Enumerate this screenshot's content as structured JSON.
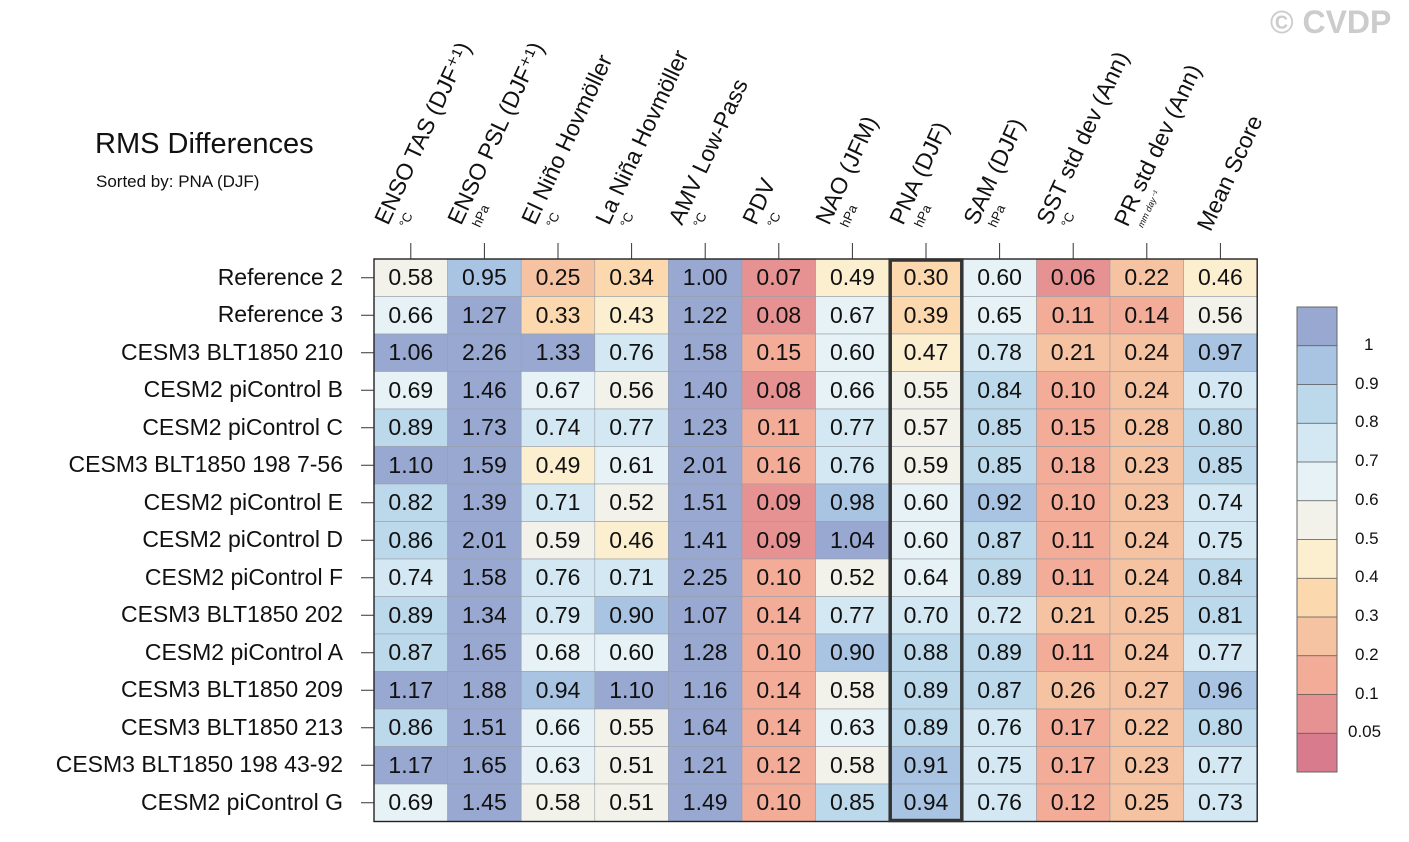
{
  "title": "RMS Differences",
  "subtitle": "Sorted by: PNA (DJF)",
  "copyright": "© CVDP",
  "chart_data": {
    "type": "heatmap",
    "highlighted_column": "PNA (DJF)",
    "columns": [
      {
        "name": "ENSO TAS (DJF⁺¹)",
        "unit": "°C"
      },
      {
        "name": "ENSO PSL (DJF⁺¹)",
        "unit": "hPa"
      },
      {
        "name": "El Niño Hovmöller",
        "unit": "°C"
      },
      {
        "name": "La Niña Hovmöller",
        "unit": "°C"
      },
      {
        "name": "AMV Low-Pass",
        "unit": "°C"
      },
      {
        "name": "PDV",
        "unit": "°C"
      },
      {
        "name": "NAO (JFM)",
        "unit": "hPa"
      },
      {
        "name": "PNA (DJF)",
        "unit": "hPa"
      },
      {
        "name": "SAM (DJF)",
        "unit": "hPa"
      },
      {
        "name": "SST std dev (Ann)",
        "unit": "°C"
      },
      {
        "name": "PR std dev (Ann)",
        "unit": "mm day⁻¹"
      },
      {
        "name": "Mean Score",
        "unit": ""
      }
    ],
    "rows": [
      {
        "label": "Reference 2",
        "values": [
          "0.58",
          "0.95",
          "0.25",
          "0.34",
          "1.00",
          "0.07",
          "0.49",
          "0.30",
          "0.60",
          "0.06",
          "0.22",
          "0.46"
        ]
      },
      {
        "label": "Reference 3",
        "values": [
          "0.66",
          "1.27",
          "0.33",
          "0.43",
          "1.22",
          "0.08",
          "0.67",
          "0.39",
          "0.65",
          "0.11",
          "0.14",
          "0.56"
        ]
      },
      {
        "label": "CESM3 BLT1850 210",
        "values": [
          "1.06",
          "2.26",
          "1.33",
          "0.76",
          "1.58",
          "0.15",
          "0.60",
          "0.47",
          "0.78",
          "0.21",
          "0.24",
          "0.97"
        ]
      },
      {
        "label": "CESM2 piControl B",
        "values": [
          "0.69",
          "1.46",
          "0.67",
          "0.56",
          "1.40",
          "0.08",
          "0.66",
          "0.55",
          "0.84",
          "0.10",
          "0.24",
          "0.70"
        ]
      },
      {
        "label": "CESM2 piControl C",
        "values": [
          "0.89",
          "1.73",
          "0.74",
          "0.77",
          "1.23",
          "0.11",
          "0.77",
          "0.57",
          "0.85",
          "0.15",
          "0.28",
          "0.80"
        ]
      },
      {
        "label": "CESM3 BLT1850 198 7-56",
        "values": [
          "1.10",
          "1.59",
          "0.49",
          "0.61",
          "2.01",
          "0.16",
          "0.76",
          "0.59",
          "0.85",
          "0.18",
          "0.23",
          "0.85"
        ]
      },
      {
        "label": "CESM2 piControl E",
        "values": [
          "0.82",
          "1.39",
          "0.71",
          "0.52",
          "1.51",
          "0.09",
          "0.98",
          "0.60",
          "0.92",
          "0.10",
          "0.23",
          "0.74"
        ]
      },
      {
        "label": "CESM2 piControl D",
        "values": [
          "0.86",
          "2.01",
          "0.59",
          "0.46",
          "1.41",
          "0.09",
          "1.04",
          "0.60",
          "0.87",
          "0.11",
          "0.24",
          "0.75"
        ]
      },
      {
        "label": "CESM2 piControl F",
        "values": [
          "0.74",
          "1.58",
          "0.76",
          "0.71",
          "2.25",
          "0.10",
          "0.52",
          "0.64",
          "0.89",
          "0.11",
          "0.24",
          "0.84"
        ]
      },
      {
        "label": "CESM3 BLT1850 202",
        "values": [
          "0.89",
          "1.34",
          "0.79",
          "0.90",
          "1.07",
          "0.14",
          "0.77",
          "0.70",
          "0.72",
          "0.21",
          "0.25",
          "0.81"
        ]
      },
      {
        "label": "CESM2 piControl A",
        "values": [
          "0.87",
          "1.65",
          "0.68",
          "0.60",
          "1.28",
          "0.10",
          "0.90",
          "0.88",
          "0.89",
          "0.11",
          "0.24",
          "0.77"
        ]
      },
      {
        "label": "CESM3 BLT1850 209",
        "values": [
          "1.17",
          "1.88",
          "0.94",
          "1.10",
          "1.16",
          "0.14",
          "0.58",
          "0.89",
          "0.87",
          "0.26",
          "0.27",
          "0.96"
        ]
      },
      {
        "label": "CESM3 BLT1850 213",
        "values": [
          "0.86",
          "1.51",
          "0.66",
          "0.55",
          "1.64",
          "0.14",
          "0.63",
          "0.89",
          "0.76",
          "0.17",
          "0.22",
          "0.80"
        ]
      },
      {
        "label": "CESM3 BLT1850 198 43-92",
        "values": [
          "1.17",
          "1.65",
          "0.63",
          "0.51",
          "1.21",
          "0.12",
          "0.58",
          "0.91",
          "0.75",
          "0.17",
          "0.23",
          "0.77"
        ]
      },
      {
        "label": "CESM2 piControl G",
        "values": [
          "0.69",
          "1.45",
          "0.58",
          "0.51",
          "1.49",
          "0.10",
          "0.85",
          "0.94",
          "0.76",
          "0.12",
          "0.25",
          "0.73"
        ]
      }
    ],
    "colorbar": {
      "labels": [
        "1",
        "0.9",
        "0.8",
        "0.7",
        "0.6",
        "0.5",
        "0.4",
        "0.3",
        "0.2",
        "0.1",
        "0.05"
      ],
      "bins": [
        1.0,
        0.9,
        0.8,
        0.7,
        0.6,
        0.5,
        0.4,
        0.3,
        0.2,
        0.1,
        0.05
      ],
      "colors": [
        "#98a8d1",
        "#a9c4e2",
        "#bcd8eb",
        "#d3e8f2",
        "#e6f2f6",
        "#f2f2ea",
        "#fcefcf",
        "#fbd8ad",
        "#f6c3a2",
        "#f2ac98",
        "#e79292",
        "#d87b8c"
      ]
    }
  }
}
